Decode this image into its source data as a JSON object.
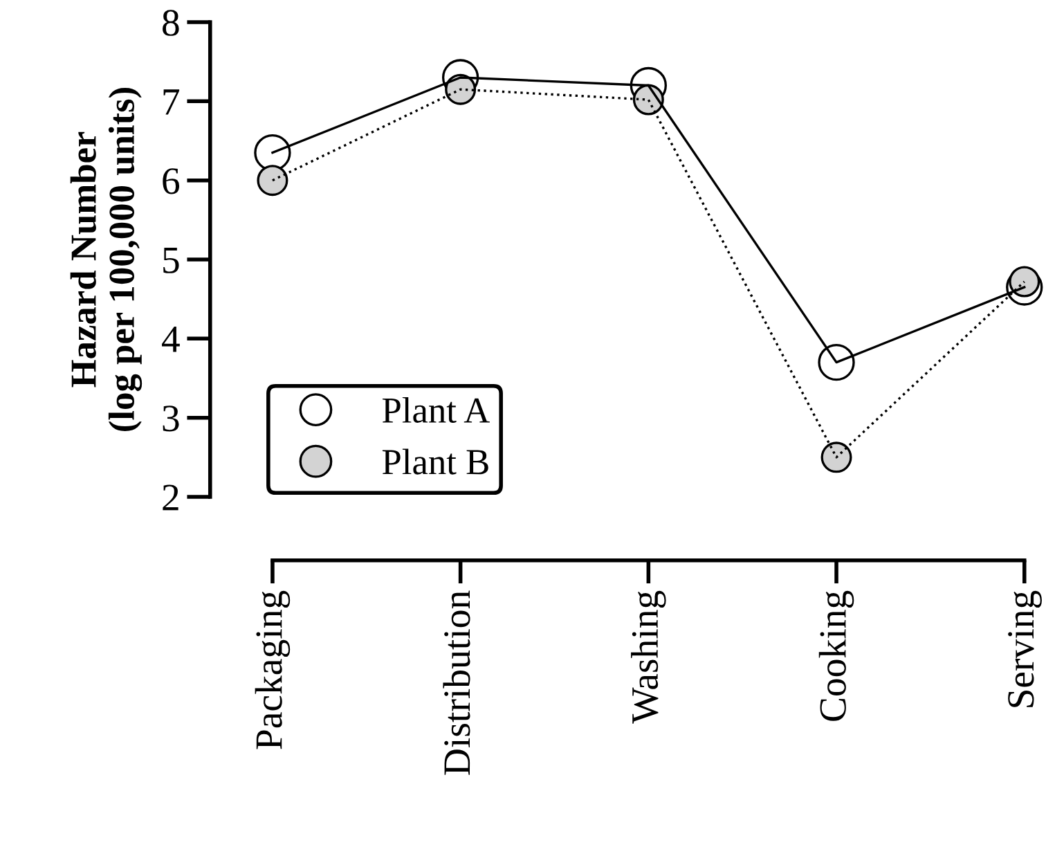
{
  "chart_data": {
    "type": "line",
    "ylabel": "Hazard Number\n(log per 100,000 units)",
    "categories": [
      "Packaging",
      "Distribution",
      "Washing",
      "Cooking",
      "Serving"
    ],
    "series": [
      {
        "name": "Plant A",
        "color": "#ffffff",
        "line_style": "solid",
        "values": [
          6.35,
          7.3,
          7.2,
          3.7,
          4.65
        ]
      },
      {
        "name": "Plant B",
        "color": "#d3d3d3",
        "line_style": "dotted",
        "values": [
          6.0,
          7.15,
          7.02,
          2.5,
          4.72
        ]
      }
    ],
    "ylim": [
      2,
      8
    ],
    "yticks": [
      2,
      3,
      4,
      5,
      6,
      7,
      8
    ],
    "marker": "circle",
    "grid": false,
    "legend": "bottom left"
  }
}
